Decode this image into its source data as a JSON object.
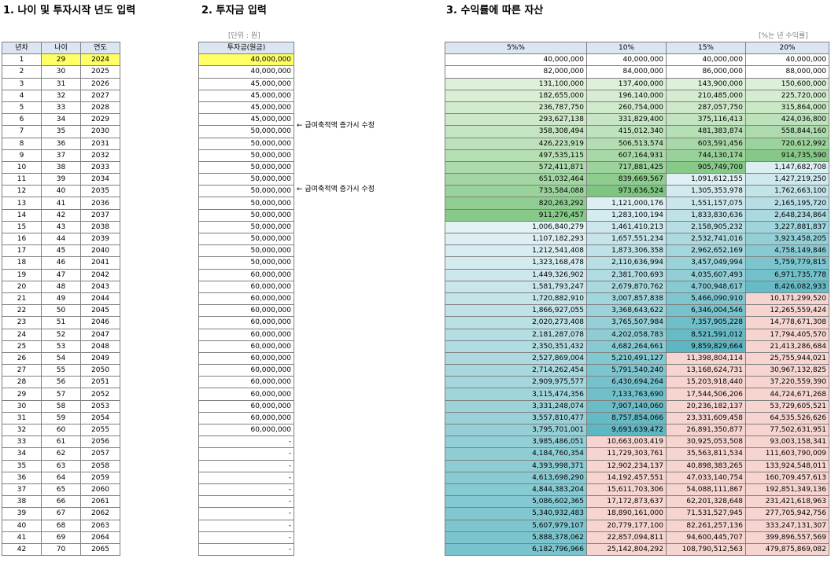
{
  "section1": {
    "title": "1. 나이 및 투자시작 년도 입력",
    "headers": [
      "년차",
      "나이",
      "연도"
    ]
  },
  "section2": {
    "title": "2. 투자금 입력",
    "unit": "[단위 : 원]",
    "header": "투자금(원금)",
    "notes": [
      "← 급여축적액 증가시 수정",
      "← 급여축적액 증가시 수정"
    ]
  },
  "section3": {
    "title": "3. 수익률에 따른 자산",
    "unit": "[%는 년 수익률]",
    "headers": [
      "5%%",
      "10%",
      "15%",
      "20%"
    ]
  },
  "colors": {
    "header": "#dce6f2",
    "input_highlight": "#ffff66",
    "green_dark": "#7cc47f",
    "green_light": "#e2f2dd",
    "teal_dark": "#5cb7c2",
    "teal_light": "#e3f2f5",
    "salmon": "#f6d5d0"
  },
  "rows": [
    [
      "1",
      "29",
      "2024",
      "40,000,000",
      "40,000,000",
      "40,000,000",
      "40,000,000",
      "40,000,000"
    ],
    [
      "2",
      "30",
      "2025",
      "40,000,000",
      "82,000,000",
      "84,000,000",
      "86,000,000",
      "88,000,000"
    ],
    [
      "3",
      "31",
      "2026",
      "45,000,000",
      "131,100,000",
      "137,400,000",
      "143,900,000",
      "150,600,000"
    ],
    [
      "4",
      "32",
      "2027",
      "45,000,000",
      "182,655,000",
      "196,140,000",
      "210,485,000",
      "225,720,000"
    ],
    [
      "5",
      "33",
      "2028",
      "45,000,000",
      "236,787,750",
      "260,754,000",
      "287,057,750",
      "315,864,000"
    ],
    [
      "6",
      "34",
      "2029",
      "45,000,000",
      "293,627,138",
      "331,829,400",
      "375,116,413",
      "424,036,800"
    ],
    [
      "7",
      "35",
      "2030",
      "50,000,000",
      "358,308,494",
      "415,012,340",
      "481,383,874",
      "558,844,160"
    ],
    [
      "8",
      "36",
      "2031",
      "50,000,000",
      "426,223,919",
      "506,513,574",
      "603,591,456",
      "720,612,992"
    ],
    [
      "9",
      "37",
      "2032",
      "50,000,000",
      "497,535,115",
      "607,164,931",
      "744,130,174",
      "914,735,590"
    ],
    [
      "10",
      "38",
      "2033",
      "50,000,000",
      "572,411,871",
      "717,881,425",
      "905,749,700",
      "1,147,682,708"
    ],
    [
      "11",
      "39",
      "2034",
      "50,000,000",
      "651,032,464",
      "839,669,567",
      "1,091,612,155",
      "1,427,219,250"
    ],
    [
      "12",
      "40",
      "2035",
      "50,000,000",
      "733,584,088",
      "973,636,524",
      "1,305,353,978",
      "1,762,663,100"
    ],
    [
      "13",
      "41",
      "2036",
      "50,000,000",
      "820,263,292",
      "1,121,000,176",
      "1,551,157,075",
      "2,165,195,720"
    ],
    [
      "14",
      "42",
      "2037",
      "50,000,000",
      "911,276,457",
      "1,283,100,194",
      "1,833,830,636",
      "2,648,234,864"
    ],
    [
      "15",
      "43",
      "2038",
      "50,000,000",
      "1,006,840,279",
      "1,461,410,213",
      "2,158,905,232",
      "3,227,881,837"
    ],
    [
      "16",
      "44",
      "2039",
      "50,000,000",
      "1,107,182,293",
      "1,657,551,234",
      "2,532,741,016",
      "3,923,458,205"
    ],
    [
      "17",
      "45",
      "2040",
      "50,000,000",
      "1,212,541,408",
      "1,873,306,358",
      "2,962,652,169",
      "4,758,149,846"
    ],
    [
      "18",
      "46",
      "2041",
      "50,000,000",
      "1,323,168,478",
      "2,110,636,994",
      "3,457,049,994",
      "5,759,779,815"
    ],
    [
      "19",
      "47",
      "2042",
      "60,000,000",
      "1,449,326,902",
      "2,381,700,693",
      "4,035,607,493",
      "6,971,735,778"
    ],
    [
      "20",
      "48",
      "2043",
      "60,000,000",
      "1,581,793,247",
      "2,679,870,762",
      "4,700,948,617",
      "8,426,082,933"
    ],
    [
      "21",
      "49",
      "2044",
      "60,000,000",
      "1,720,882,910",
      "3,007,857,838",
      "5,466,090,910",
      "10,171,299,520"
    ],
    [
      "22",
      "50",
      "2045",
      "60,000,000",
      "1,866,927,055",
      "3,368,643,622",
      "6,346,004,546",
      "12,265,559,424"
    ],
    [
      "23",
      "51",
      "2046",
      "60,000,000",
      "2,020,273,408",
      "3,765,507,984",
      "7,357,905,228",
      "14,778,671,308"
    ],
    [
      "24",
      "52",
      "2047",
      "60,000,000",
      "2,181,287,078",
      "4,202,058,783",
      "8,521,591,012",
      "17,794,405,570"
    ],
    [
      "25",
      "53",
      "2048",
      "60,000,000",
      "2,350,351,432",
      "4,682,264,661",
      "9,859,829,664",
      "21,413,286,684"
    ],
    [
      "26",
      "54",
      "2049",
      "60,000,000",
      "2,527,869,004",
      "5,210,491,127",
      "11,398,804,114",
      "25,755,944,021"
    ],
    [
      "27",
      "55",
      "2050",
      "60,000,000",
      "2,714,262,454",
      "5,791,540,240",
      "13,168,624,731",
      "30,967,132,825"
    ],
    [
      "28",
      "56",
      "2051",
      "60,000,000",
      "2,909,975,577",
      "6,430,694,264",
      "15,203,918,440",
      "37,220,559,390"
    ],
    [
      "29",
      "57",
      "2052",
      "60,000,000",
      "3,115,474,356",
      "7,133,763,690",
      "17,544,506,206",
      "44,724,671,268"
    ],
    [
      "30",
      "58",
      "2053",
      "60,000,000",
      "3,331,248,074",
      "7,907,140,060",
      "20,236,182,137",
      "53,729,605,521"
    ],
    [
      "31",
      "59",
      "2054",
      "60,000,000",
      "3,557,810,477",
      "8,757,854,066",
      "23,331,609,458",
      "64,535,526,626"
    ],
    [
      "32",
      "60",
      "2055",
      "60,000,000",
      "3,795,701,001",
      "9,693,639,472",
      "26,891,350,877",
      "77,502,631,951"
    ],
    [
      "33",
      "61",
      "2056",
      "-",
      "3,985,486,051",
      "10,663,003,419",
      "30,925,053,508",
      "93,003,158,341"
    ],
    [
      "34",
      "62",
      "2057",
      "-",
      "4,184,760,354",
      "11,729,303,761",
      "35,563,811,534",
      "111,603,790,009"
    ],
    [
      "35",
      "63",
      "2058",
      "-",
      "4,393,998,371",
      "12,902,234,137",
      "40,898,383,265",
      "133,924,548,011"
    ],
    [
      "36",
      "64",
      "2059",
      "-",
      "4,613,698,290",
      "14,192,457,551",
      "47,033,140,754",
      "160,709,457,613"
    ],
    [
      "37",
      "65",
      "2060",
      "-",
      "4,844,383,204",
      "15,611,703,306",
      "54,088,111,867",
      "192,851,349,136"
    ],
    [
      "38",
      "66",
      "2061",
      "-",
      "5,086,602,365",
      "17,172,873,637",
      "62,201,328,648",
      "231,421,618,963"
    ],
    [
      "39",
      "67",
      "2062",
      "-",
      "5,340,932,483",
      "18,890,161,000",
      "71,531,527,945",
      "277,705,942,756"
    ],
    [
      "40",
      "68",
      "2063",
      "-",
      "5,607,979,107",
      "20,779,177,100",
      "82,261,257,136",
      "333,247,131,307"
    ],
    [
      "41",
      "69",
      "2064",
      "-",
      "5,888,378,062",
      "22,857,094,811",
      "94,600,445,707",
      "399,896,557,569"
    ],
    [
      "42",
      "70",
      "2065",
      "-",
      "6,182,796,966",
      "25,142,804,292",
      "108,790,512,563",
      "479,875,869,082"
    ]
  ]
}
